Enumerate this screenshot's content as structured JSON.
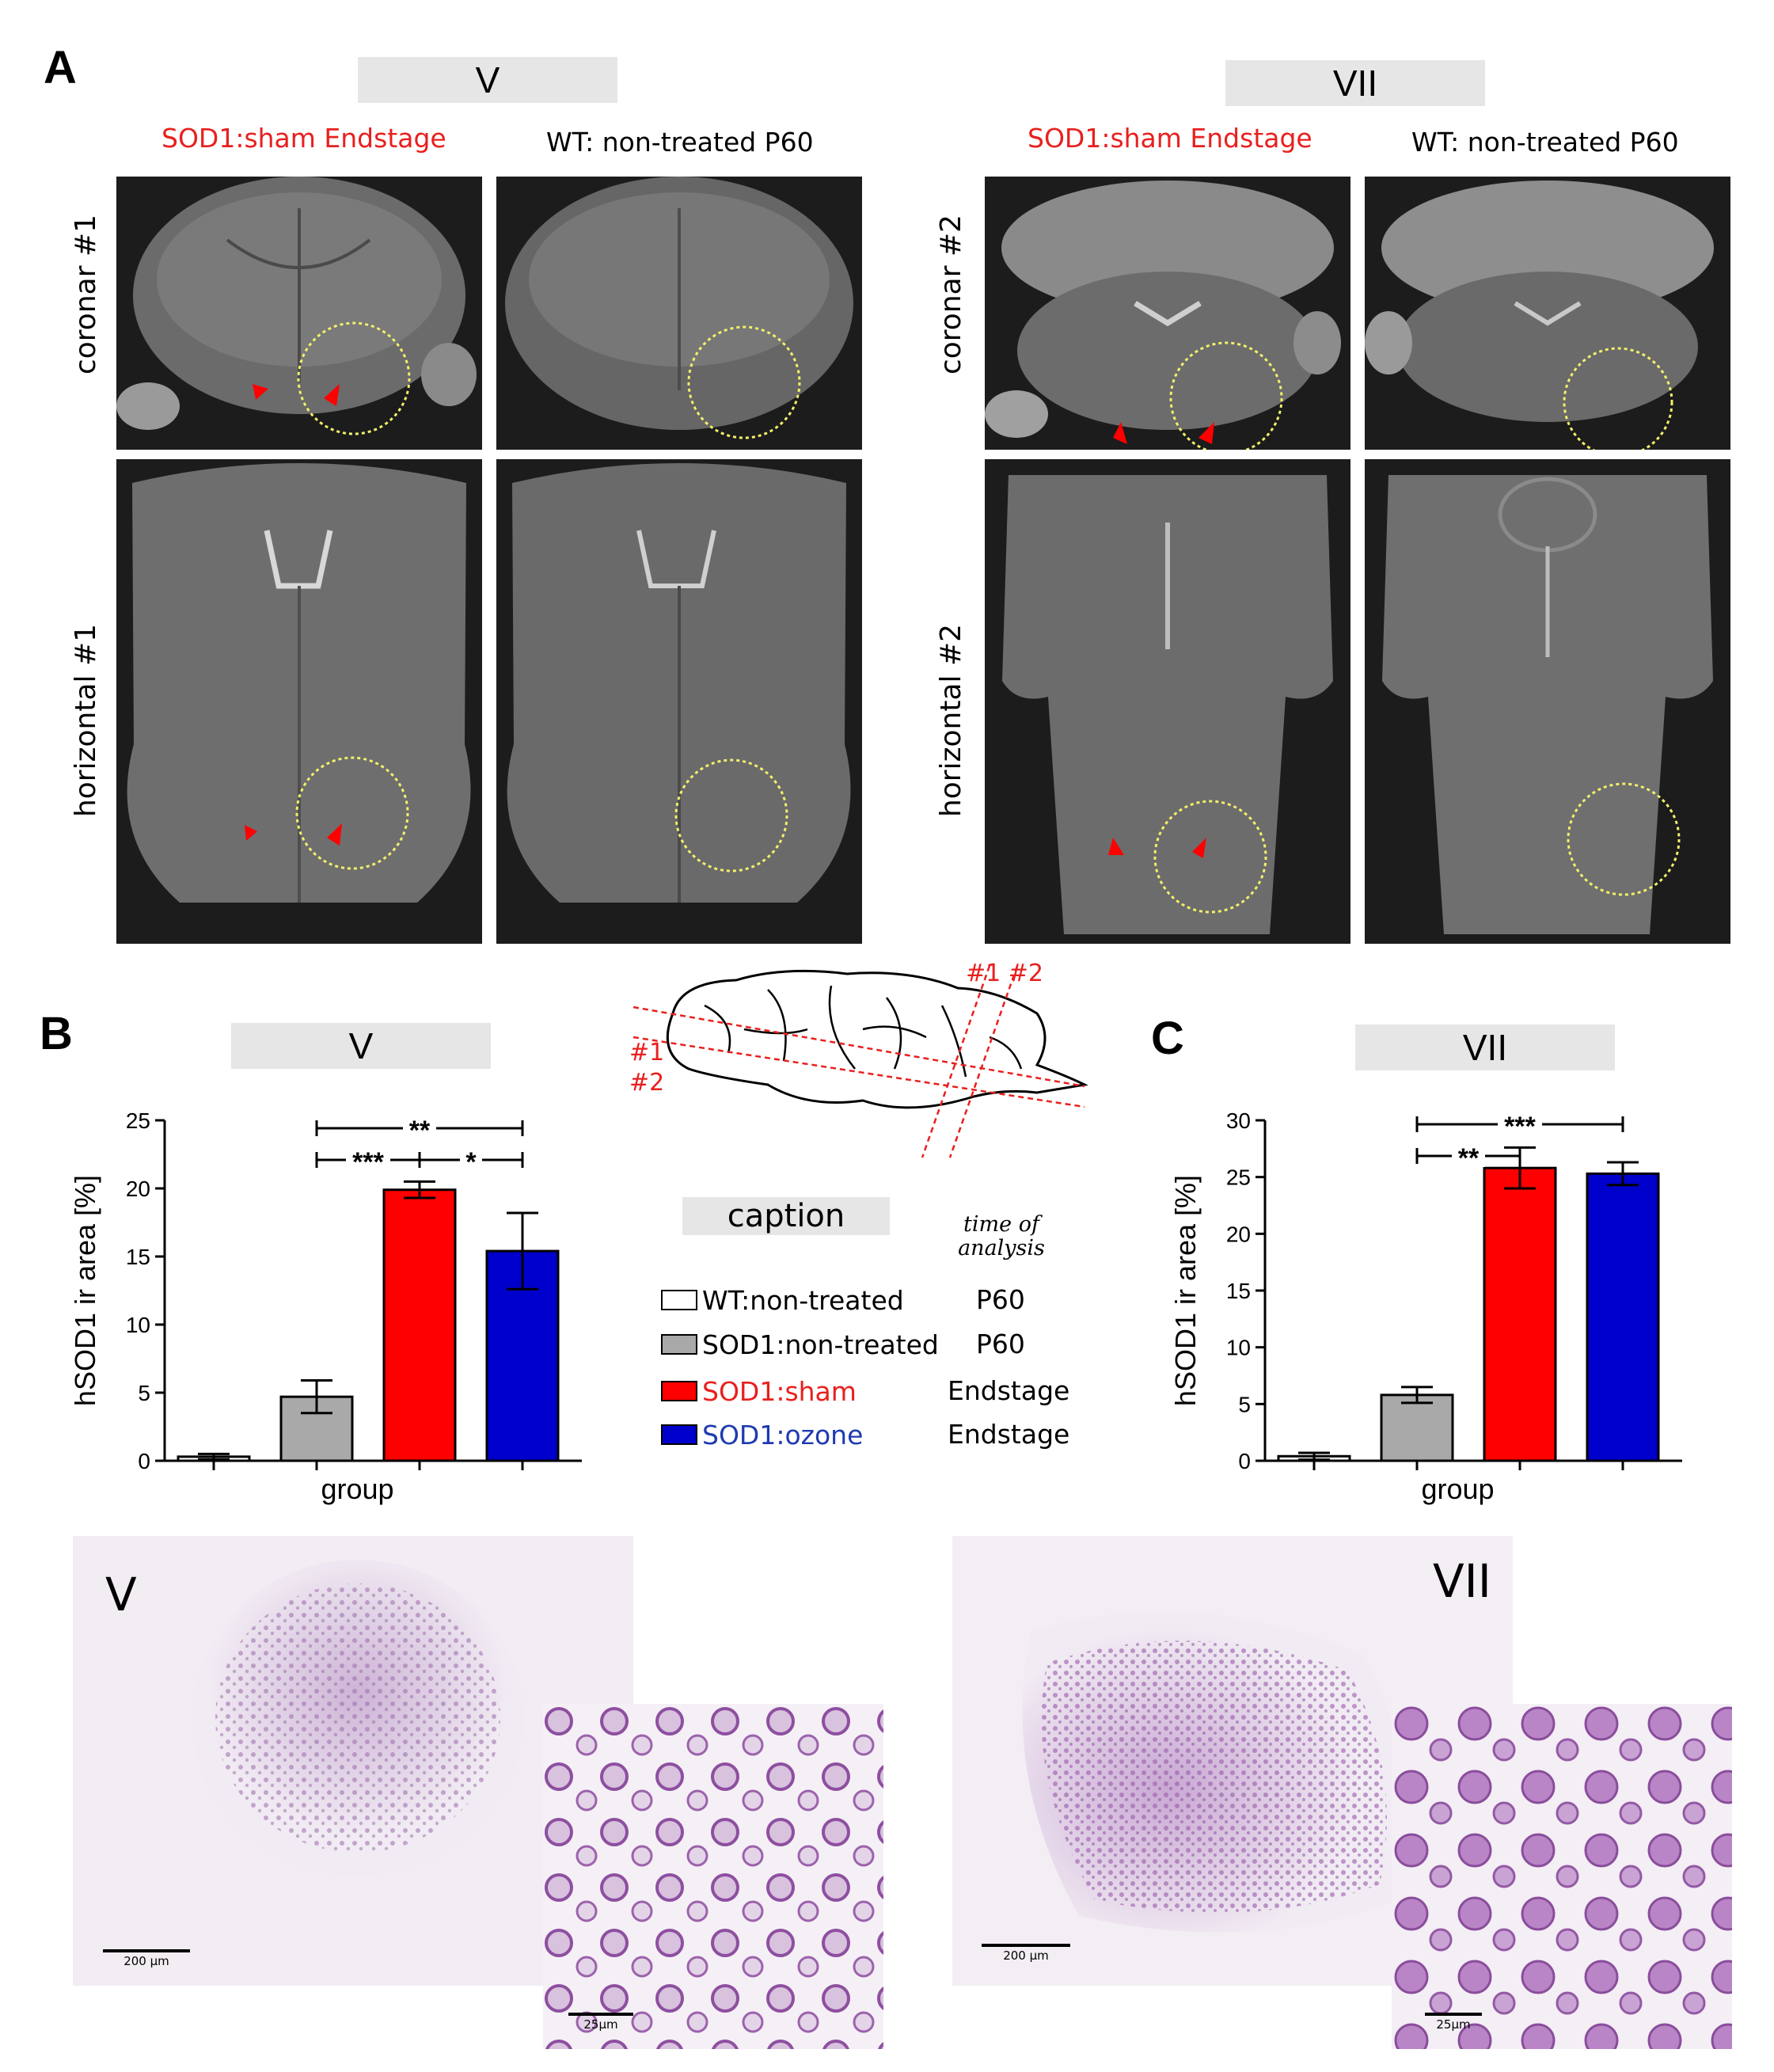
{
  "panel_a": {
    "letter": "A",
    "left_header": "V",
    "right_header": "VII",
    "col_sod1": "SOD1:sham Endstage",
    "col_wt": "WT: non-treated P60",
    "row_coronar_1": "coronar #1",
    "row_horizontal_1": "horizontal #1",
    "row_coronar_2": "coronar #2",
    "row_horizontal_2": "horizontal #2"
  },
  "panel_b": {
    "letter": "B",
    "header": "V"
  },
  "panel_c": {
    "letter": "C",
    "header": "VII"
  },
  "diagram": {
    "label_1": "#1",
    "label_2": "#2",
    "label_top": "#1 #2"
  },
  "caption": {
    "title": "caption",
    "time_header_1": "time of",
    "time_header_2": "analysis",
    "rows": [
      {
        "label": "WT:non-treated",
        "time": "P60",
        "color": "#ffffff",
        "text_color": "#000000"
      },
      {
        "label": "SOD1:non-treated",
        "time": "P60",
        "color": "#a9a9a9",
        "text_color": "#000000"
      },
      {
        "label": "SOD1:sham",
        "time": "Endstage",
        "color": "#ff0000",
        "text_color": "#e8201e"
      },
      {
        "label": "SOD1:ozone",
        "time": "Endstage",
        "color": "#0000cc",
        "text_color": "#1f3ab0"
      }
    ]
  },
  "histology": {
    "left_label": "V",
    "right_label": "VII",
    "scale_large": "200 µm",
    "scale_small": "25µm"
  },
  "chart_data": [
    {
      "type": "bar",
      "panel": "B",
      "title": "V",
      "xlabel": "group",
      "ylabel": "hSOD1 ir area [%]",
      "ylim": [
        0,
        25
      ],
      "yticks": [
        0,
        5,
        10,
        15,
        20,
        25
      ],
      "categories": [
        "WT:non-treated",
        "SOD1:non-treated",
        "SOD1:sham",
        "SOD1:ozone"
      ],
      "values": [
        0.3,
        4.7,
        19.9,
        15.4
      ],
      "errors": [
        0.2,
        1.2,
        0.6,
        2.8
      ],
      "colors": [
        "#ffffff",
        "#a9a9a9",
        "#ff0000",
        "#0000cc"
      ],
      "significance": [
        {
          "from": 1,
          "to": 3,
          "label": "**"
        },
        {
          "from": 1,
          "to": 2,
          "label": "***"
        },
        {
          "from": 2,
          "to": 3,
          "label": "*"
        }
      ]
    },
    {
      "type": "bar",
      "panel": "C",
      "title": "VII",
      "xlabel": "group",
      "ylabel": "hSOD1 ir area [%]",
      "ylim": [
        0,
        30
      ],
      "yticks": [
        0,
        5,
        10,
        15,
        20,
        25,
        30
      ],
      "categories": [
        "WT:non-treated",
        "SOD1:non-treated",
        "SOD1:sham",
        "SOD1:ozone"
      ],
      "values": [
        0.4,
        5.8,
        25.8,
        25.3
      ],
      "errors": [
        0.3,
        0.7,
        1.8,
        1.0
      ],
      "colors": [
        "#ffffff",
        "#a9a9a9",
        "#ff0000",
        "#0000cc"
      ],
      "significance": [
        {
          "from": 1,
          "to": 3,
          "label": "***"
        },
        {
          "from": 1,
          "to": 2,
          "label": "**"
        }
      ]
    }
  ]
}
